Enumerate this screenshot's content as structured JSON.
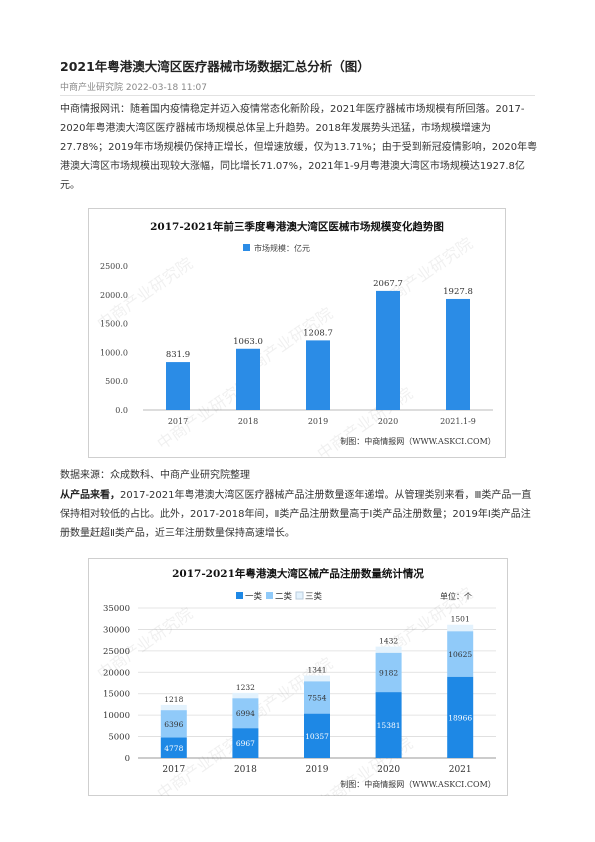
{
  "article": {
    "title": "2021年粤港澳大湾区医疗器械市场数据汇总分析（图）",
    "meta": "中商产业研究院 2022-03-18 11:07",
    "para1": "中商情报网讯：随着国内疫情稳定并迈入疫情常态化新阶段，2021年医疗器械市场规模有所回落。2017-2020年粤港澳大湾区医疗器械市场规模总体呈上升趋势。2018年发展势头迅猛，市场规模增速为27.78%；2019年市场规模仍保持正增长，但增速放缓，仅为13.71%；由于受到新冠疫情影响，2020年粤港澳大湾区市场规模出现较大涨幅，同比增长71.07%，2021年1-9月粤港澳大湾区市场规模达1927.8亿元。",
    "source": "数据来源：众成数科、中商产业研究院整理",
    "para2_bold": "从产品来看，",
    "para2": "2017-2021年粤港澳大湾区医疗器械产品注册数量逐年递增。从管理类别来看，Ⅲ类产品一直保持相对较低的占比。此外，2017-2018年间，Ⅱ类产品注册数量高于Ⅰ类产品注册数量；2019年Ⅰ类产品注册数量赶超Ⅱ类产品，近三年注册数量保持高速增长。"
  },
  "watermark": "中商产业研究院",
  "chart_data": [
    {
      "type": "bar",
      "title": "2017-2021年前三季度粤港澳大湾区医械市场规模变化趋势图",
      "legend": "市场规模：亿元",
      "legend_position": "top-center",
      "categories": [
        "2017",
        "2018",
        "2019",
        "2020",
        "2021.1-9"
      ],
      "values": [
        831.9,
        1063.0,
        1208.7,
        2067.7,
        1927.8
      ],
      "labels": [
        "831.9",
        "1063.0",
        "1208.7",
        "2067.7",
        "1927.8"
      ],
      "yticks": [
        "0.0",
        "500.0",
        "1000.0",
        "1500.0",
        "2000.0",
        "2500.0"
      ],
      "ylim": [
        0,
        2500
      ],
      "grid": false,
      "color": "#2b8ce6",
      "credit": "制图：中商情报网（WWW.ASKCI.COM）"
    },
    {
      "type": "bar",
      "stacked": true,
      "title": "2017-2021年粤港澳大湾区械产品注册数量统计情况",
      "unit": "单位：个",
      "legend_position": "top-center",
      "categories": [
        "2017",
        "2018",
        "2019",
        "2020",
        "2021"
      ],
      "series": [
        {
          "name": "一类",
          "values": [
            4778,
            6967,
            10357,
            15381,
            18966
          ],
          "color": "#1e88e5"
        },
        {
          "name": "二类",
          "values": [
            6396,
            6994,
            7554,
            9182,
            10625
          ],
          "color": "#90caf9"
        },
        {
          "name": "三类",
          "values": [
            1218,
            1232,
            1341,
            1432,
            1501
          ],
          "color": "#e3f2fd"
        }
      ],
      "yticks": [
        "0",
        "5000",
        "10000",
        "15000",
        "20000",
        "25000",
        "30000",
        "35000"
      ],
      "ylim": [
        0,
        35000
      ],
      "grid": true,
      "credit": "制图：中商情报网（WWW.ASKCI.COM）"
    }
  ]
}
